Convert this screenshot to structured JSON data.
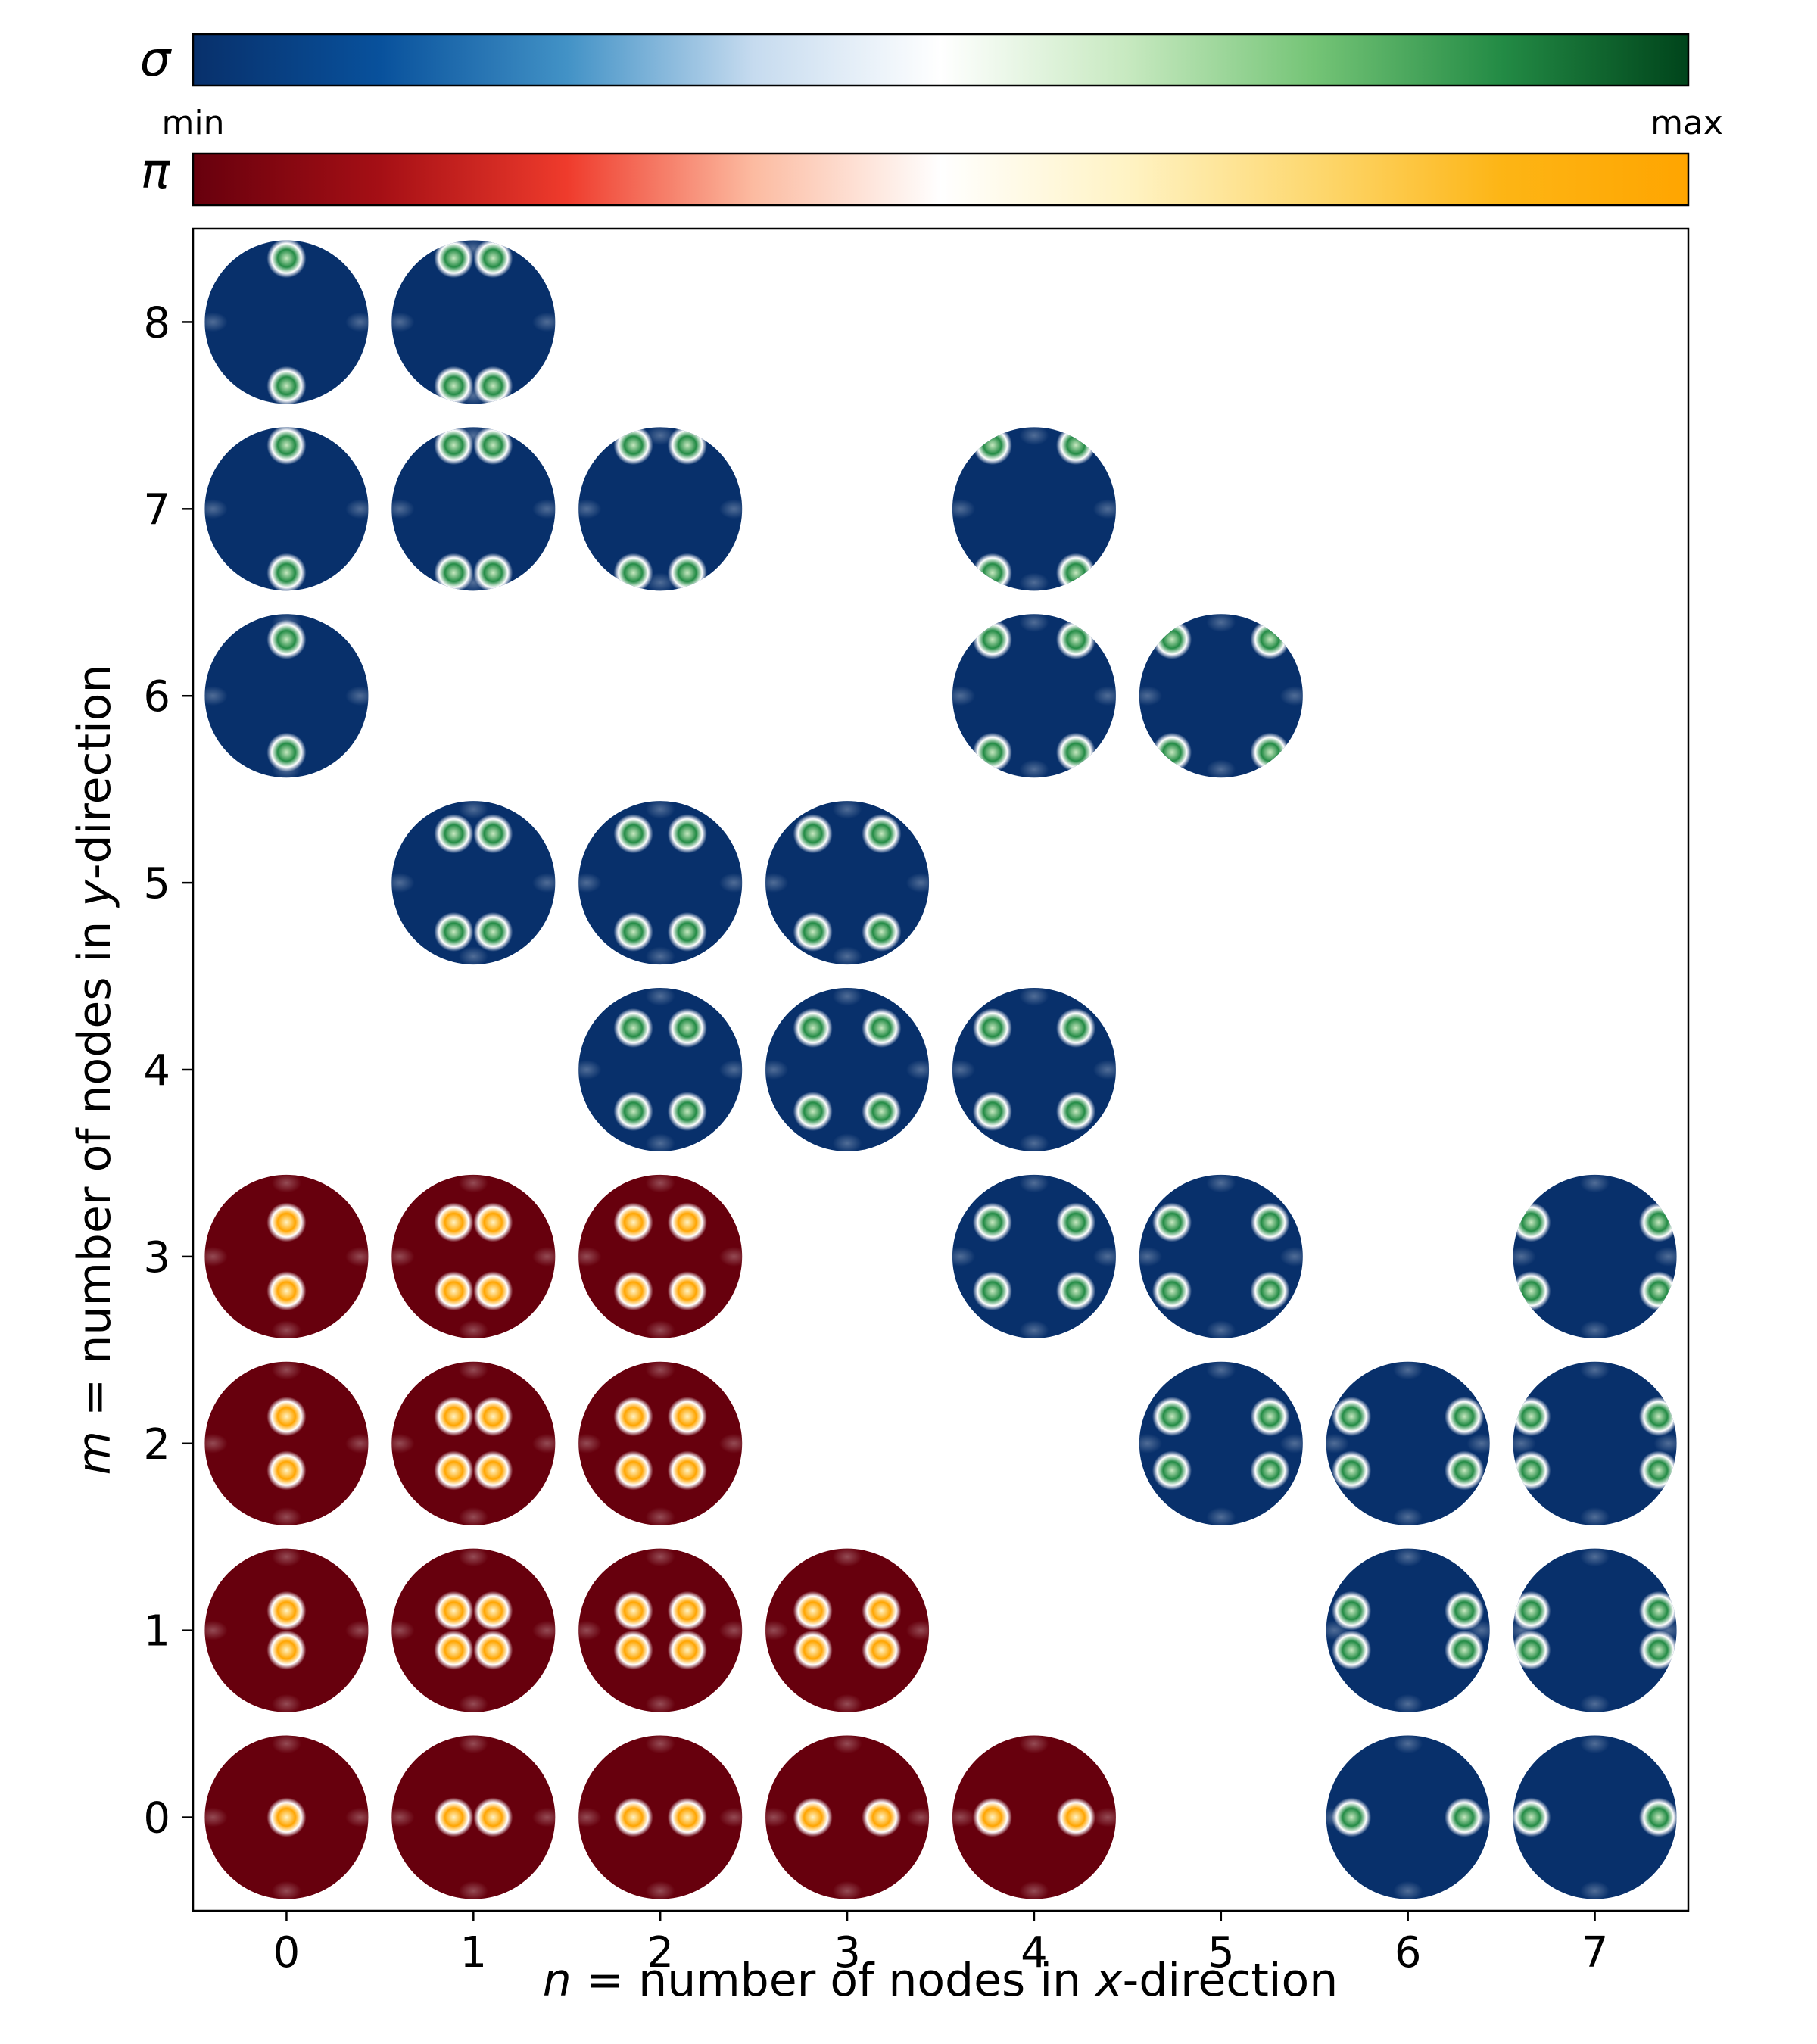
{
  "chart_data": {
    "type": "scatter",
    "xlabel": {
      "var": "n",
      "rest": " = number of nodes in ",
      "axisvar": "x",
      "tail": "-direction"
    },
    "ylabel": {
      "var": "m",
      "rest": " = number of nodes in ",
      "axisvar": "y",
      "tail": "-direction"
    },
    "x_ticks": [
      "0",
      "1",
      "2",
      "3",
      "4",
      "5",
      "6",
      "7"
    ],
    "y_ticks": [
      "0",
      "1",
      "2",
      "3",
      "4",
      "5",
      "6",
      "7",
      "8"
    ],
    "xlim": [
      -0.5,
      7.5
    ],
    "ylim": [
      -0.5,
      8.5
    ],
    "colorbars": [
      {
        "symbol": "σ",
        "label_min": "min",
        "label_max": "max",
        "colors": [
          "#08306b",
          "#08519c",
          "#4292c6",
          "#c6dbef",
          "#ffffff",
          "#c7e9c0",
          "#74c476",
          "#238b45",
          "#00441b"
        ]
      },
      {
        "symbol": "π",
        "colors": [
          "#67000d",
          "#a50f15",
          "#ef3b2c",
          "#fcbba1",
          "#ffffff",
          "#fff3c4",
          "#fdd870",
          "#fdb515",
          "#ffa500"
        ]
      }
    ],
    "sigma_modes": [
      {
        "n": 0,
        "m": 8
      },
      {
        "n": 1,
        "m": 8
      },
      {
        "n": 0,
        "m": 7
      },
      {
        "n": 1,
        "m": 7
      },
      {
        "n": 2,
        "m": 7
      },
      {
        "n": 4,
        "m": 7
      },
      {
        "n": 0,
        "m": 6
      },
      {
        "n": 4,
        "m": 6
      },
      {
        "n": 5,
        "m": 6
      },
      {
        "n": 1,
        "m": 5
      },
      {
        "n": 2,
        "m": 5
      },
      {
        "n": 3,
        "m": 5
      },
      {
        "n": 2,
        "m": 4
      },
      {
        "n": 3,
        "m": 4
      },
      {
        "n": 4,
        "m": 4
      },
      {
        "n": 4,
        "m": 3
      },
      {
        "n": 5,
        "m": 3
      },
      {
        "n": 7,
        "m": 3
      },
      {
        "n": 5,
        "m": 2
      },
      {
        "n": 6,
        "m": 2
      },
      {
        "n": 7,
        "m": 2
      },
      {
        "n": 6,
        "m": 1
      },
      {
        "n": 7,
        "m": 1
      },
      {
        "n": 6,
        "m": 0
      },
      {
        "n": 7,
        "m": 0
      }
    ],
    "pi_modes": [
      {
        "n": 0,
        "m": 3
      },
      {
        "n": 1,
        "m": 3
      },
      {
        "n": 2,
        "m": 3
      },
      {
        "n": 0,
        "m": 2
      },
      {
        "n": 1,
        "m": 2
      },
      {
        "n": 2,
        "m": 2
      },
      {
        "n": 0,
        "m": 1
      },
      {
        "n": 1,
        "m": 1
      },
      {
        "n": 2,
        "m": 1
      },
      {
        "n": 3,
        "m": 1
      },
      {
        "n": 0,
        "m": 0
      },
      {
        "n": 1,
        "m": 0
      },
      {
        "n": 2,
        "m": 0
      },
      {
        "n": 3,
        "m": 0
      },
      {
        "n": 4,
        "m": 0
      }
    ]
  }
}
